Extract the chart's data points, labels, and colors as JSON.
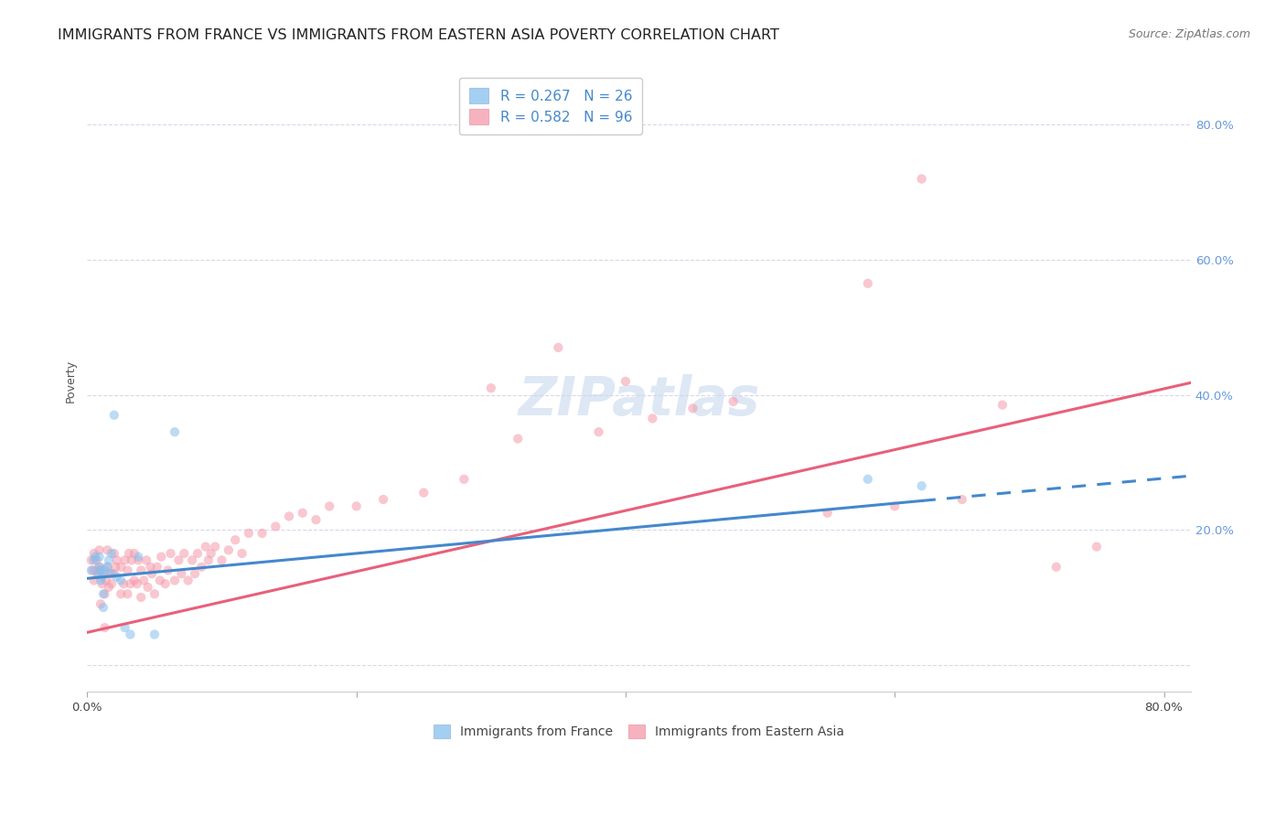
{
  "title": "IMMIGRANTS FROM FRANCE VS IMMIGRANTS FROM EASTERN ASIA POVERTY CORRELATION CHART",
  "source": "Source: ZipAtlas.com",
  "ylabel": "Poverty",
  "xlim": [
    0.0,
    0.82
  ],
  "ylim": [
    -0.04,
    0.88
  ],
  "xticks": [
    0.0,
    0.2,
    0.4,
    0.6,
    0.8
  ],
  "xtick_labels": [
    "0.0%",
    "",
    "",
    "",
    "80.0%"
  ],
  "yticks": [
    0.0,
    0.2,
    0.4,
    0.6,
    0.8
  ],
  "ytick_labels": [
    "",
    "20.0%",
    "40.0%",
    "60.0%",
    "80.0%"
  ],
  "background_color": "#ffffff",
  "grid_color": "#d8d8e8",
  "watermark_text": "ZIPatlas",
  "france_color": "#85bfee",
  "eastern_asia_color": "#f599aa",
  "france_R": 0.267,
  "france_N": 26,
  "eastern_asia_R": 0.582,
  "eastern_asia_N": 96,
  "france_scatter_x": [
    0.003,
    0.005,
    0.006,
    0.008,
    0.009,
    0.009,
    0.01,
    0.01,
    0.011,
    0.012,
    0.012,
    0.013,
    0.015,
    0.016,
    0.018,
    0.018,
    0.02,
    0.022,
    0.025,
    0.028,
    0.032,
    0.038,
    0.05,
    0.065,
    0.58,
    0.62
  ],
  "france_scatter_y": [
    0.14,
    0.155,
    0.16,
    0.135,
    0.145,
    0.16,
    0.125,
    0.14,
    0.13,
    0.085,
    0.105,
    0.14,
    0.145,
    0.155,
    0.135,
    0.165,
    0.37,
    0.13,
    0.125,
    0.055,
    0.045,
    0.16,
    0.045,
    0.345,
    0.275,
    0.265
  ],
  "eastern_asia_scatter_x": [
    0.003,
    0.004,
    0.005,
    0.005,
    0.006,
    0.007,
    0.008,
    0.009,
    0.009,
    0.01,
    0.01,
    0.011,
    0.012,
    0.013,
    0.013,
    0.014,
    0.015,
    0.015,
    0.016,
    0.017,
    0.018,
    0.02,
    0.02,
    0.021,
    0.022,
    0.025,
    0.025,
    0.027,
    0.028,
    0.03,
    0.03,
    0.031,
    0.032,
    0.033,
    0.035,
    0.035,
    0.037,
    0.038,
    0.04,
    0.04,
    0.042,
    0.044,
    0.045,
    0.047,
    0.048,
    0.05,
    0.052,
    0.054,
    0.055,
    0.058,
    0.06,
    0.062,
    0.065,
    0.068,
    0.07,
    0.072,
    0.075,
    0.078,
    0.08,
    0.082,
    0.085,
    0.088,
    0.09,
    0.092,
    0.095,
    0.1,
    0.105,
    0.11,
    0.115,
    0.12,
    0.13,
    0.14,
    0.15,
    0.16,
    0.17,
    0.18,
    0.2,
    0.22,
    0.25,
    0.28,
    0.3,
    0.32,
    0.35,
    0.38,
    0.4,
    0.42,
    0.45,
    0.48,
    0.55,
    0.58,
    0.6,
    0.62,
    0.65,
    0.68,
    0.72,
    0.75
  ],
  "eastern_asia_scatter_y": [
    0.155,
    0.14,
    0.125,
    0.165,
    0.14,
    0.155,
    0.135,
    0.145,
    0.17,
    0.09,
    0.14,
    0.12,
    0.135,
    0.055,
    0.105,
    0.125,
    0.145,
    0.17,
    0.115,
    0.135,
    0.12,
    0.135,
    0.165,
    0.145,
    0.155,
    0.105,
    0.145,
    0.12,
    0.155,
    0.105,
    0.14,
    0.165,
    0.12,
    0.155,
    0.125,
    0.165,
    0.12,
    0.155,
    0.1,
    0.14,
    0.125,
    0.155,
    0.115,
    0.145,
    0.135,
    0.105,
    0.145,
    0.125,
    0.16,
    0.12,
    0.14,
    0.165,
    0.125,
    0.155,
    0.135,
    0.165,
    0.125,
    0.155,
    0.135,
    0.165,
    0.145,
    0.175,
    0.155,
    0.165,
    0.175,
    0.155,
    0.17,
    0.185,
    0.165,
    0.195,
    0.195,
    0.205,
    0.22,
    0.225,
    0.215,
    0.235,
    0.235,
    0.245,
    0.255,
    0.275,
    0.41,
    0.335,
    0.47,
    0.345,
    0.42,
    0.365,
    0.38,
    0.39,
    0.225,
    0.565,
    0.235,
    0.72,
    0.245,
    0.385,
    0.145,
    0.175
  ],
  "france_line_start_x": 0.0,
  "france_line_start_y": 0.128,
  "france_line_solid_end_x": 0.62,
  "france_line_solid_end_y": 0.243,
  "france_line_dash_end_x": 0.82,
  "france_line_dash_end_y": 0.28,
  "eastern_asia_line_start_x": 0.0,
  "eastern_asia_line_start_y": 0.048,
  "eastern_asia_line_end_x": 0.82,
  "eastern_asia_line_end_y": 0.418,
  "title_fontsize": 11.5,
  "source_fontsize": 9,
  "axis_label_fontsize": 9,
  "tick_fontsize": 9.5,
  "legend_fontsize": 11,
  "watermark_fontsize": 42,
  "marker_size": 55,
  "marker_alpha": 0.55,
  "line_width": 2.2
}
